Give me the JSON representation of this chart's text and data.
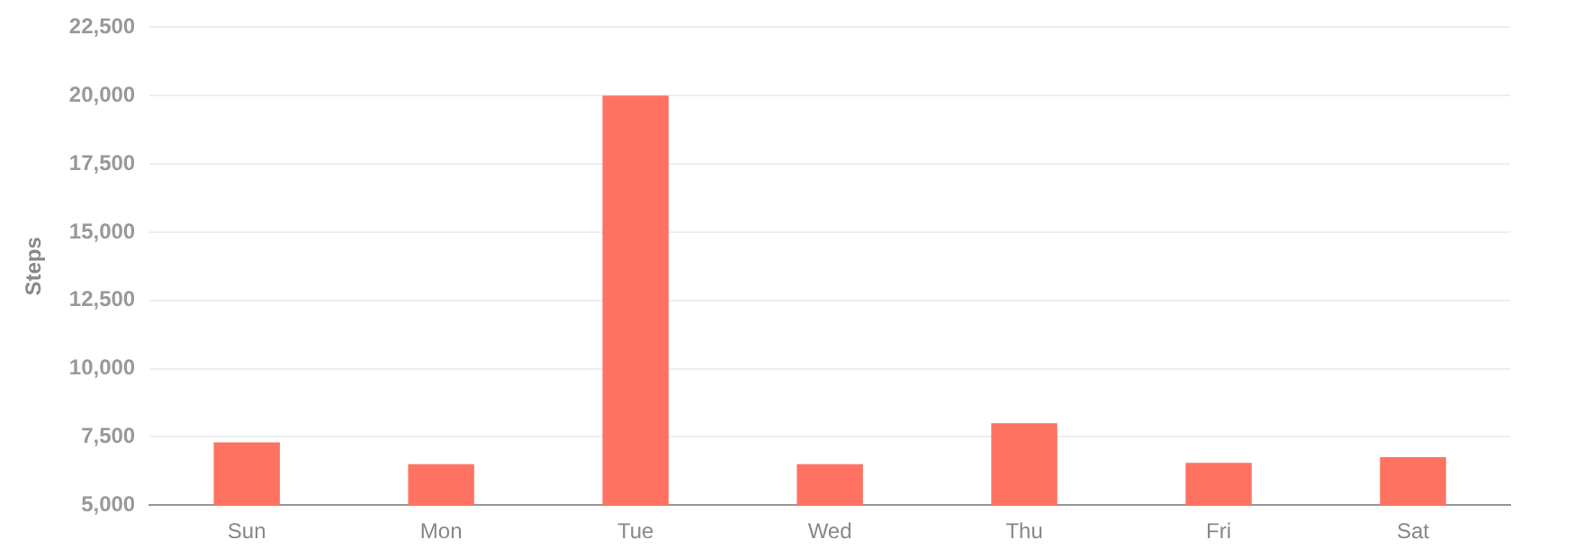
{
  "chart_data": {
    "type": "bar",
    "ylabel": "Steps",
    "categories": [
      "Sun",
      "Mon",
      "Tue",
      "Wed",
      "Thu",
      "Fri",
      "Sat"
    ],
    "values": [
      7300,
      6500,
      20000,
      6500,
      8000,
      6550,
      6750
    ],
    "color": "#ff7262",
    "ylim": [
      5000,
      22500
    ],
    "yticks": [
      {
        "value": 5000,
        "label": "5,000"
      },
      {
        "value": 7500,
        "label": "7,500"
      },
      {
        "value": 10000,
        "label": "10,000"
      },
      {
        "value": 12500,
        "label": "12,500"
      },
      {
        "value": 15000,
        "label": "15,000"
      },
      {
        "value": 17500,
        "label": "17,500"
      },
      {
        "value": 20000,
        "label": "20,000"
      },
      {
        "value": 22500,
        "label": "22,500"
      }
    ],
    "grid": "y",
    "legend": false
  }
}
